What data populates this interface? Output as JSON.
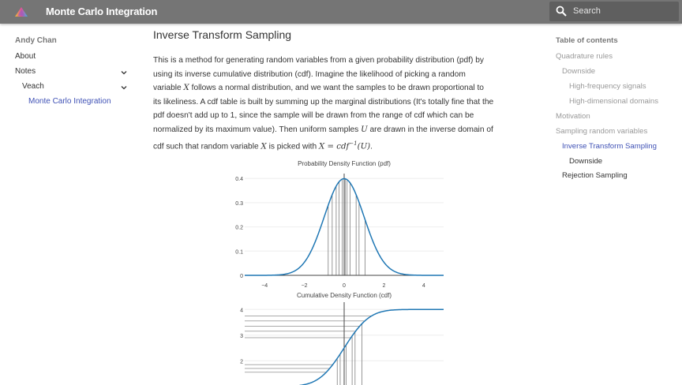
{
  "header": {
    "title": "Monte Carlo Integration",
    "search_placeholder": "Search",
    "icons": {
      "logo": "triangle-logo-icon",
      "search": "search-icon"
    }
  },
  "nav": {
    "author": "Andy Chan",
    "items": [
      {
        "label": "About"
      },
      {
        "label": "Notes",
        "expandable": true
      },
      {
        "label": "Veach",
        "expandable": true
      },
      {
        "label": "Monte Carlo Integration",
        "active": true
      }
    ]
  },
  "main": {
    "heading": "Inverse Transform Sampling",
    "paragraph_lines": [
      [
        "This is a method for generating random variables from a given probability distribution (pdf) by"
      ],
      [
        "using its inverse cumulative distribution (cdf). Imagine the likelihood of picking a random"
      ],
      [
        "variable ",
        "X",
        " follows a normal distribution, and we want the samples to be drawn proportional to"
      ],
      [
        "its likeliness. A cdf table is built by summing up the marginal distributions (It's totally fine that the"
      ],
      [
        "pdf doesn't add up to 1, since the sample will be drawn from the range of cdf which can be"
      ],
      [
        "normalized by its maximum value). Then uniform samples ",
        "U",
        " are drawn in the inverse domain of"
      ],
      [
        "cdf such that random variable ",
        "X",
        " is picked with ",
        "X = cdf",
        "−1",
        "(U)",
        "."
      ]
    ]
  },
  "toc": {
    "title": "Table of contents",
    "items": [
      {
        "label": "Quadrature rules",
        "level": 0
      },
      {
        "label": "Downside",
        "level": 1
      },
      {
        "label": "High-frequency signals",
        "level": 2
      },
      {
        "label": "High-dimensional domains",
        "level": 2
      },
      {
        "label": "Motivation",
        "level": 0
      },
      {
        "label": "Sampling random variables",
        "level": 0
      },
      {
        "label": "Inverse Transform Sampling",
        "level": 1,
        "active": true
      },
      {
        "label": "Downside",
        "level": 2,
        "dark": true
      },
      {
        "label": "Rejection Sampling",
        "level": 1,
        "dark": true
      }
    ]
  },
  "chart_data": [
    {
      "type": "line",
      "title": "Probability Density Function (pdf)",
      "xlim": [
        -5,
        5
      ],
      "ylim": [
        0,
        0.42
      ],
      "xticks": [
        -4,
        -2,
        0,
        2,
        4
      ],
      "xtick_labels": [
        "−4",
        "−2",
        "0",
        "2",
        "4"
      ],
      "yticks": [
        0,
        0.1,
        0.2,
        0.3,
        0.4
      ],
      "ytick_labels": [
        "0",
        "0.1",
        "0.2",
        "0.3",
        "0.4"
      ],
      "curve": "standard normal pdf",
      "sample_lines_x": [
        -0.8,
        -0.6,
        -0.4,
        -0.25,
        -0.1,
        0.05,
        0.15,
        0.3,
        0.6,
        0.75,
        1.05
      ],
      "color": "#1f77b4"
    },
    {
      "type": "line",
      "title": "Cumulative Density Function (cdf)",
      "xlim": [
        -5,
        5
      ],
      "ylim": [
        0.9,
        4.1
      ],
      "yticks": [
        1,
        2,
        3,
        4
      ],
      "ytick_labels": [
        "1",
        "2",
        "3",
        "4"
      ],
      "curve": "scaled normal cdf",
      "sample_lines_x": [
        -0.35,
        -0.2,
        0.1,
        0.4,
        0.55,
        0.9
      ],
      "sample_lines_y": [
        1.55,
        1.7,
        1.85,
        2.9,
        3.15,
        3.35,
        3.55,
        3.75
      ],
      "color": "#1f77b4"
    }
  ]
}
